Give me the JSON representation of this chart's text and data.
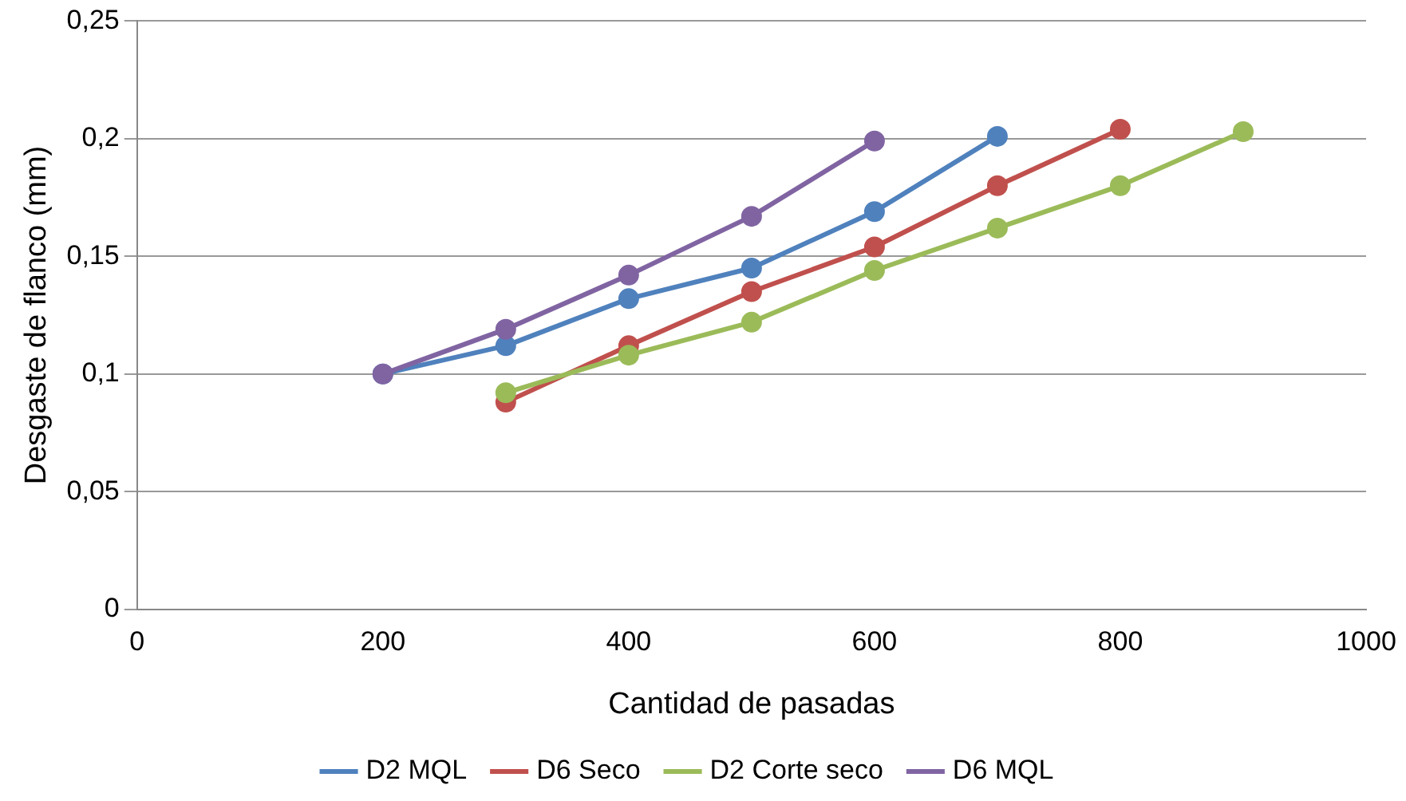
{
  "chart_data": {
    "type": "line",
    "xlabel": "Cantidad de pasadas",
    "ylabel": "Desgaste de flanco (mm)",
    "xlim": [
      0,
      1000
    ],
    "xticks": [
      0,
      200,
      400,
      600,
      800,
      1000
    ],
    "ylim": [
      0,
      0.25
    ],
    "yticks": [
      0,
      {
        "value": 0.05,
        "label": "0,05"
      },
      {
        "value": 0.1,
        "label": "0,1"
      },
      {
        "value": 0.15,
        "label": "0,15"
      },
      {
        "value": 0.2,
        "label": "0,2"
      },
      {
        "value": 0.25,
        "label": "0,25"
      }
    ],
    "grid": "y",
    "legend": "bottom",
    "marker": "circle",
    "line_style": "solid",
    "series": [
      {
        "name": "D2 MQL",
        "color": "#4f81bd",
        "x": [
          200,
          300,
          400,
          500,
          600,
          700
        ],
        "values": [
          0.1,
          0.112,
          0.132,
          0.145,
          0.169,
          0.201
        ]
      },
      {
        "name": "D6 Seco",
        "color": "#c0504d",
        "x": [
          300,
          400,
          500,
          600,
          700,
          800
        ],
        "values": [
          0.088,
          0.112,
          0.135,
          0.154,
          0.18,
          0.204
        ]
      },
      {
        "name": "D2 Corte seco",
        "color": "#9bbb59",
        "x": [
          300,
          400,
          500,
          600,
          700,
          800,
          900
        ],
        "values": [
          0.092,
          0.108,
          0.122,
          0.144,
          0.162,
          0.18,
          0.203
        ]
      },
      {
        "name": "D6 MQL",
        "color": "#8064a2",
        "x": [
          200,
          300,
          400,
          500,
          600
        ],
        "values": [
          0.1,
          0.119,
          0.142,
          0.167,
          0.199
        ]
      }
    ]
  }
}
